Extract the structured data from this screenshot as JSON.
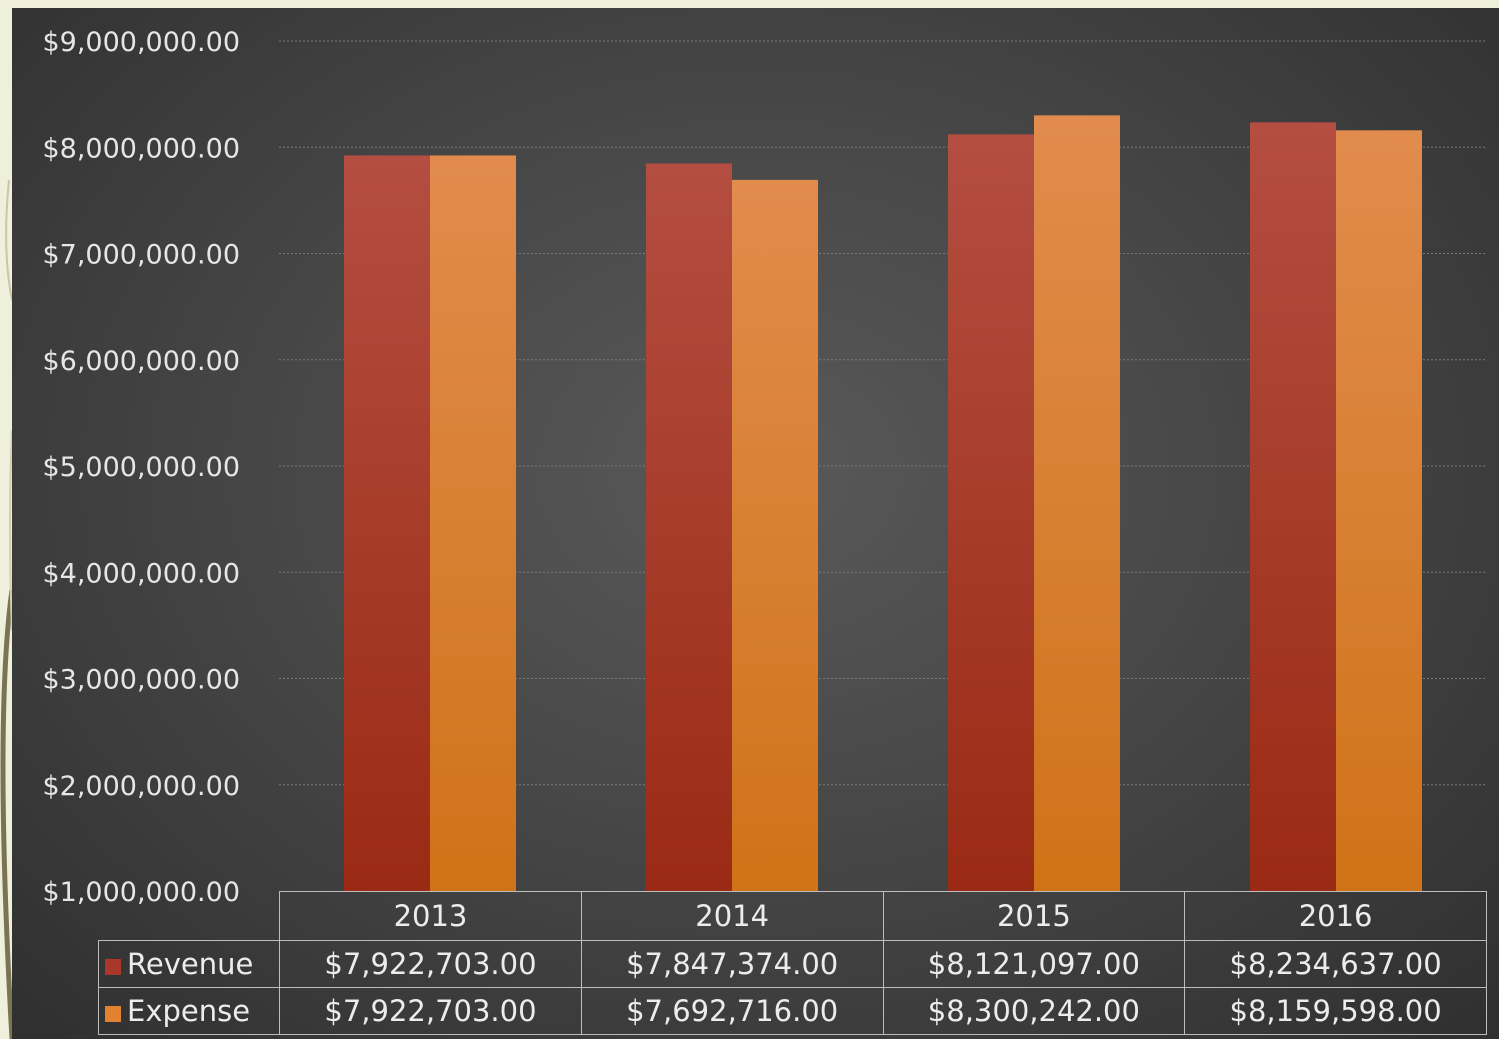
{
  "colors": {
    "revenue": "#a8382a",
    "expense": "#e0822f",
    "background": "#eef0dc",
    "panel": "#474747"
  },
  "chart_data": {
    "type": "bar",
    "title": "",
    "xlabel": "",
    "ylabel": "",
    "categories": [
      "2013",
      "2014",
      "2015",
      "2016"
    ],
    "series": [
      {
        "name": "Revenue",
        "values": [
          7922703,
          7847374,
          8121097,
          8234637
        ]
      },
      {
        "name": "Expense",
        "values": [
          7922703,
          7692716,
          8300242,
          8159598
        ]
      }
    ],
    "ylim": [
      1000000,
      9000000
    ],
    "yticks": [
      1000000,
      2000000,
      3000000,
      4000000,
      5000000,
      6000000,
      7000000,
      8000000,
      9000000
    ],
    "ytick_labels": [
      "$1,000,000.00",
      "$2,000,000.00",
      "$3,000,000.00",
      "$4,000,000.00",
      "$5,000,000.00",
      "$6,000,000.00",
      "$7,000,000.00",
      "$8,000,000.00",
      "$9,000,000.00"
    ],
    "grid": true,
    "legend": "data-table",
    "data_table": {
      "rows": [
        {
          "series": "Revenue",
          "cells": [
            "$7,922,703.00",
            "$7,847,374.00",
            "$8,121,097.00",
            "$8,234,637.00"
          ]
        },
        {
          "series": "Expense",
          "cells": [
            "$7,922,703.00",
            "$7,692,716.00",
            "$8,300,242.00",
            "$8,159,598.00"
          ]
        }
      ]
    }
  }
}
